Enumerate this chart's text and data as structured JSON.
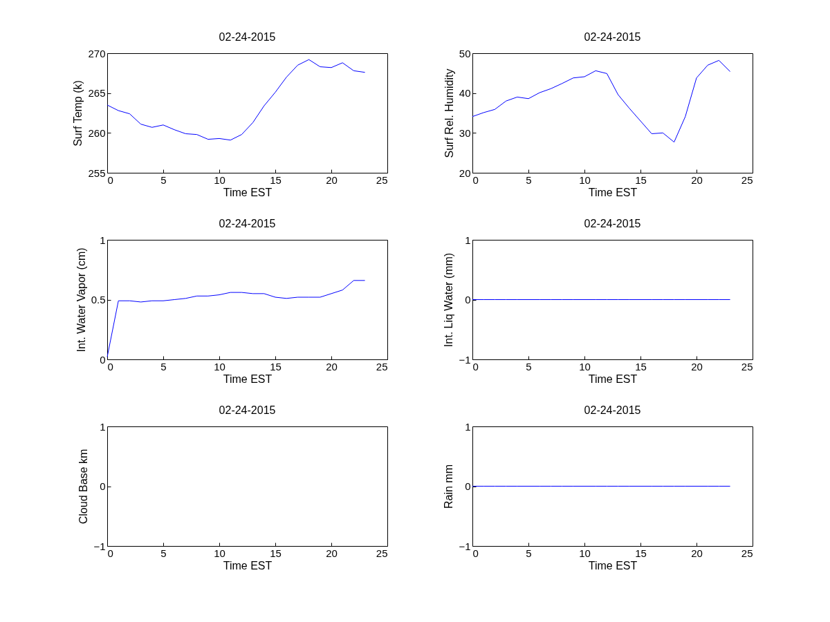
{
  "chart_data": [
    {
      "type": "line",
      "title": "02-24-2015",
      "xlabel": "Time EST",
      "ylabel": "Surf Temp (k)",
      "x": [
        0,
        1,
        2,
        3,
        4,
        5,
        6,
        7,
        8,
        9,
        10,
        11,
        12,
        13,
        14,
        15,
        16,
        17,
        18,
        19,
        20,
        21,
        22,
        23
      ],
      "xlim": [
        0,
        25
      ],
      "xticks": [
        0,
        5,
        10,
        15,
        20,
        25
      ],
      "ylim": [
        255,
        270
      ],
      "yticks": [
        255,
        260,
        265,
        270
      ],
      "series": [
        {
          "color": "#0000ff",
          "values": [
            263.5,
            262.8,
            262.4,
            261.1,
            260.7,
            261.0,
            260.4,
            259.9,
            259.8,
            259.2,
            259.3,
            259.1,
            259.8,
            261.3,
            263.4,
            265.1,
            267.0,
            268.5,
            269.2,
            268.3,
            268.2,
            268.8,
            267.8,
            267.6
          ]
        }
      ]
    },
    {
      "type": "line",
      "title": "02-24-2015",
      "xlabel": "Time EST",
      "ylabel": "Surf Rel. Humidity",
      "x": [
        0,
        1,
        2,
        3,
        4,
        5,
        6,
        7,
        8,
        9,
        10,
        11,
        12,
        13,
        14,
        15,
        16,
        17,
        18,
        19,
        20,
        21,
        22,
        23
      ],
      "xlim": [
        0,
        25
      ],
      "xticks": [
        0,
        5,
        10,
        15,
        20,
        25
      ],
      "ylim": [
        20,
        50
      ],
      "yticks": [
        20,
        30,
        40,
        50
      ],
      "series": [
        {
          "color": "#0000ff",
          "values": [
            34.1,
            35.1,
            35.9,
            38.0,
            39.0,
            38.6,
            40.1,
            41.1,
            42.4,
            43.8,
            44.1,
            45.6,
            44.9,
            39.6,
            36.2,
            33.0,
            29.8,
            30.0,
            27.7,
            34.1,
            43.8,
            47.0,
            48.2,
            45.4
          ]
        }
      ]
    },
    {
      "type": "line",
      "title": "02-24-2015",
      "xlabel": "Time EST",
      "ylabel": "Int. Water Vapor (cm)",
      "x": [
        0,
        1,
        2,
        3,
        4,
        5,
        6,
        7,
        8,
        9,
        10,
        11,
        12,
        13,
        14,
        15,
        16,
        17,
        18,
        19,
        20,
        21,
        22,
        23
      ],
      "xlim": [
        0,
        25
      ],
      "xticks": [
        0,
        5,
        10,
        15,
        20,
        25
      ],
      "ylim": [
        0,
        1
      ],
      "yticks": [
        0,
        0.5,
        1
      ],
      "series": [
        {
          "color": "#0000ff",
          "values": [
            0.02,
            0.49,
            0.49,
            0.48,
            0.49,
            0.49,
            0.5,
            0.51,
            0.53,
            0.53,
            0.54,
            0.56,
            0.56,
            0.55,
            0.55,
            0.52,
            0.51,
            0.52,
            0.52,
            0.52,
            0.55,
            0.58,
            0.66,
            0.66
          ]
        }
      ]
    },
    {
      "type": "line",
      "title": "02-24-2015",
      "xlabel": "Time EST",
      "ylabel": "Int. Liq Water (mm)",
      "x": [
        0,
        1,
        2,
        3,
        4,
        5,
        6,
        7,
        8,
        9,
        10,
        11,
        12,
        13,
        14,
        15,
        16,
        17,
        18,
        19,
        20,
        21,
        22,
        23
      ],
      "xlim": [
        0,
        25
      ],
      "xticks": [
        0,
        5,
        10,
        15,
        20,
        25
      ],
      "ylim": [
        -1,
        1
      ],
      "yticks": [
        -1,
        0,
        1
      ],
      "series": [
        {
          "color": "#0000ff",
          "values": [
            0,
            0,
            0,
            0,
            0,
            0,
            0,
            0,
            0,
            0,
            0,
            0,
            0,
            0,
            0,
            0,
            0,
            0,
            0,
            0,
            0,
            0,
            0,
            0
          ]
        }
      ]
    },
    {
      "type": "line",
      "title": "02-24-2015",
      "xlabel": "Time EST",
      "ylabel": "Cloud Base km",
      "xlim": [
        0,
        25
      ],
      "xticks": [
        0,
        5,
        10,
        15,
        20,
        25
      ],
      "ylim": [
        -1,
        1
      ],
      "yticks": [
        -1,
        0,
        1
      ]
    },
    {
      "type": "line",
      "title": "02-24-2015",
      "xlabel": "Time EST",
      "ylabel": "Rain mm",
      "x": [
        0,
        1,
        2,
        3,
        4,
        5,
        6,
        7,
        8,
        9,
        10,
        11,
        12,
        13,
        14,
        15,
        16,
        17,
        18,
        19,
        20,
        21,
        22,
        23
      ],
      "xlim": [
        0,
        25
      ],
      "xticks": [
        0,
        5,
        10,
        15,
        20,
        25
      ],
      "ylim": [
        -1,
        1
      ],
      "yticks": [
        -1,
        0,
        1
      ],
      "series": [
        {
          "color": "#0000ff",
          "values": [
            0,
            0,
            0,
            0,
            0,
            0,
            0,
            0,
            0,
            0,
            0,
            0,
            0,
            0,
            0,
            0,
            0,
            0,
            0,
            0,
            0,
            0,
            0,
            0
          ]
        }
      ]
    }
  ]
}
